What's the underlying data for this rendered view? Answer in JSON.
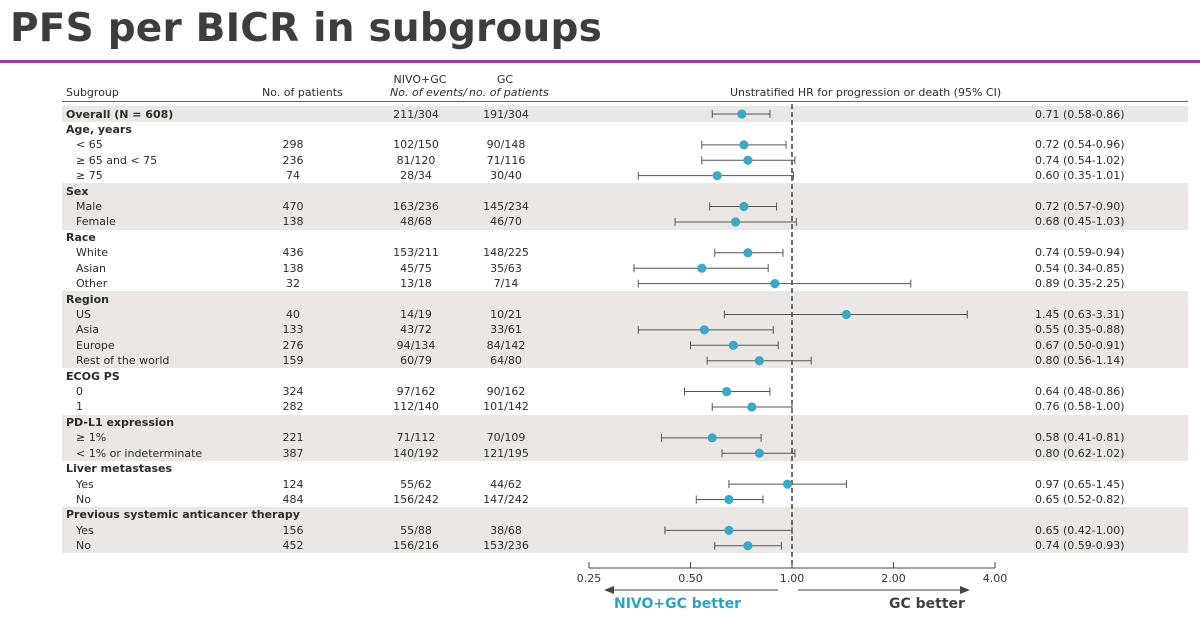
{
  "title": "PFS per BICR in subgroups",
  "colors": {
    "accent_rule": "#9b3fa3",
    "marker": "#3ea8c4",
    "band": "#ebe7e5",
    "nivo_better": "#2ea3c0",
    "gc_better": "#404040"
  },
  "table": {
    "col_subgroup": "Subgroup",
    "col_patients": "No. of patients",
    "col_nivo": "NIVO+GC",
    "col_gc": "GC",
    "col_events_left": "No. of events/",
    "col_events_right": "no. of patients",
    "col_hr": "Unstratified HR for progression or death (95% CI)"
  },
  "rows": [
    {
      "label": "Overall (N = 608)",
      "type": "overall",
      "patients": "",
      "nivo": "211/304",
      "gc": "191/304",
      "hr_text": "0.71 (0.58-0.86)"
    },
    {
      "label": "Age, years",
      "type": "category"
    },
    {
      "label": "< 65",
      "type": "item",
      "patients": "298",
      "nivo": "102/150",
      "gc": "90/148",
      "hr_text": "0.72 (0.54-0.96)"
    },
    {
      "label": "≥ 65 and < 75",
      "type": "item",
      "patients": "236",
      "nivo": "81/120",
      "gc": "71/116",
      "hr_text": "0.74 (0.54-1.02)"
    },
    {
      "label": "≥ 75",
      "type": "item",
      "patients": "74",
      "nivo": "28/34",
      "gc": "30/40",
      "hr_text": "0.60 (0.35-1.01)"
    },
    {
      "label": "Sex",
      "type": "category"
    },
    {
      "label": "Male",
      "type": "item",
      "patients": "470",
      "nivo": "163/236",
      "gc": "145/234",
      "hr_text": "0.72 (0.57-0.90)"
    },
    {
      "label": "Female",
      "type": "item",
      "patients": "138",
      "nivo": "48/68",
      "gc": "46/70",
      "hr_text": "0.68 (0.45-1.03)"
    },
    {
      "label": "Race",
      "type": "category"
    },
    {
      "label": "White",
      "type": "item",
      "patients": "436",
      "nivo": "153/211",
      "gc": "148/225",
      "hr_text": "0.74 (0.59-0.94)"
    },
    {
      "label": "Asian",
      "type": "item",
      "patients": "138",
      "nivo": "45/75",
      "gc": "35/63",
      "hr_text": "0.54 (0.34-0.85)"
    },
    {
      "label": "Other",
      "type": "item",
      "patients": "32",
      "nivo": "13/18",
      "gc": "7/14",
      "hr_text": "0.89 (0.35-2.25)"
    },
    {
      "label": "Region",
      "type": "category"
    },
    {
      "label": "US",
      "type": "item",
      "patients": "40",
      "nivo": "14/19",
      "gc": "10/21",
      "hr_text": "1.45 (0.63-3.31)"
    },
    {
      "label": "Asia",
      "type": "item",
      "patients": "133",
      "nivo": "43/72",
      "gc": "33/61",
      "hr_text": "0.55 (0.35-0.88)"
    },
    {
      "label": "Europe",
      "type": "item",
      "patients": "276",
      "nivo": "94/134",
      "gc": "84/142",
      "hr_text": "0.67 (0.50-0.91)"
    },
    {
      "label": "Rest of the world",
      "type": "item",
      "patients": "159",
      "nivo": "60/79",
      "gc": "64/80",
      "hr_text": "0.80 (0.56-1.14)"
    },
    {
      "label": "ECOG PS",
      "type": "category"
    },
    {
      "label": "0",
      "type": "item",
      "patients": "324",
      "nivo": "97/162",
      "gc": "90/162",
      "hr_text": "0.64 (0.48-0.86)"
    },
    {
      "label": "1",
      "type": "item",
      "patients": "282",
      "nivo": "112/140",
      "gc": "101/142",
      "hr_text": "0.76 (0.58-1.00)"
    },
    {
      "label": "PD-L1 expression",
      "type": "category"
    },
    {
      "label": "≥ 1%",
      "type": "item",
      "patients": "221",
      "nivo": "71/112",
      "gc": "70/109",
      "hr_text": "0.58 (0.41-0.81)"
    },
    {
      "label": "< 1% or indeterminate",
      "type": "item",
      "patients": "387",
      "nivo": "140/192",
      "gc": "121/195",
      "hr_text": "0.80 (0.62-1.02)"
    },
    {
      "label": "Liver metastases",
      "type": "category"
    },
    {
      "label": "Yes",
      "type": "item",
      "patients": "124",
      "nivo": "55/62",
      "gc": "44/62",
      "hr_text": "0.97 (0.65-1.45)"
    },
    {
      "label": "No",
      "type": "item",
      "patients": "484",
      "nivo": "156/242",
      "gc": "147/242",
      "hr_text": "0.65 (0.52-0.82)"
    },
    {
      "label": "Previous systemic anticancer therapy",
      "type": "category"
    },
    {
      "label": "Yes",
      "type": "item",
      "patients": "156",
      "nivo": "55/88",
      "gc": "38/68",
      "hr_text": "0.65 (0.42-1.00)"
    },
    {
      "label": "No",
      "type": "item",
      "patients": "452",
      "nivo": "156/216",
      "gc": "153/236",
      "hr_text": "0.74 (0.59-0.93)"
    }
  ],
  "chart_data": {
    "type": "scatter",
    "title": "Unstratified HR for progression or death (95% CI)",
    "x_scale": "log",
    "xlim": [
      0.25,
      4.0
    ],
    "x_ticks": [
      0.25,
      0.5,
      1.0,
      2.0,
      4.0
    ],
    "x_tick_labels": [
      "0.25",
      "0.50",
      "1.00",
      "2.00",
      "4.00"
    ],
    "reference_line": 1.0,
    "left_label": "NIVO+GC better",
    "right_label": "GC better",
    "points": [
      {
        "row": 0,
        "hr": 0.71,
        "lo": 0.58,
        "hi": 0.86
      },
      {
        "row": 2,
        "hr": 0.72,
        "lo": 0.54,
        "hi": 0.96
      },
      {
        "row": 3,
        "hr": 0.74,
        "lo": 0.54,
        "hi": 1.02
      },
      {
        "row": 4,
        "hr": 0.6,
        "lo": 0.35,
        "hi": 1.01
      },
      {
        "row": 6,
        "hr": 0.72,
        "lo": 0.57,
        "hi": 0.9
      },
      {
        "row": 7,
        "hr": 0.68,
        "lo": 0.45,
        "hi": 1.03
      },
      {
        "row": 9,
        "hr": 0.74,
        "lo": 0.59,
        "hi": 0.94
      },
      {
        "row": 10,
        "hr": 0.54,
        "lo": 0.34,
        "hi": 0.85
      },
      {
        "row": 11,
        "hr": 0.89,
        "lo": 0.35,
        "hi": 2.25
      },
      {
        "row": 13,
        "hr": 1.45,
        "lo": 0.63,
        "hi": 3.31
      },
      {
        "row": 14,
        "hr": 0.55,
        "lo": 0.35,
        "hi": 0.88
      },
      {
        "row": 15,
        "hr": 0.67,
        "lo": 0.5,
        "hi": 0.91
      },
      {
        "row": 16,
        "hr": 0.8,
        "lo": 0.56,
        "hi": 1.14
      },
      {
        "row": 18,
        "hr": 0.64,
        "lo": 0.48,
        "hi": 0.86
      },
      {
        "row": 19,
        "hr": 0.76,
        "lo": 0.58,
        "hi": 1.0
      },
      {
        "row": 21,
        "hr": 0.58,
        "lo": 0.41,
        "hi": 0.81
      },
      {
        "row": 22,
        "hr": 0.8,
        "lo": 0.62,
        "hi": 1.02
      },
      {
        "row": 24,
        "hr": 0.97,
        "lo": 0.65,
        "hi": 1.45
      },
      {
        "row": 25,
        "hr": 0.65,
        "lo": 0.52,
        "hi": 0.82
      },
      {
        "row": 27,
        "hr": 0.65,
        "lo": 0.42,
        "hi": 1.0
      },
      {
        "row": 28,
        "hr": 0.74,
        "lo": 0.59,
        "hi": 0.93
      }
    ]
  }
}
